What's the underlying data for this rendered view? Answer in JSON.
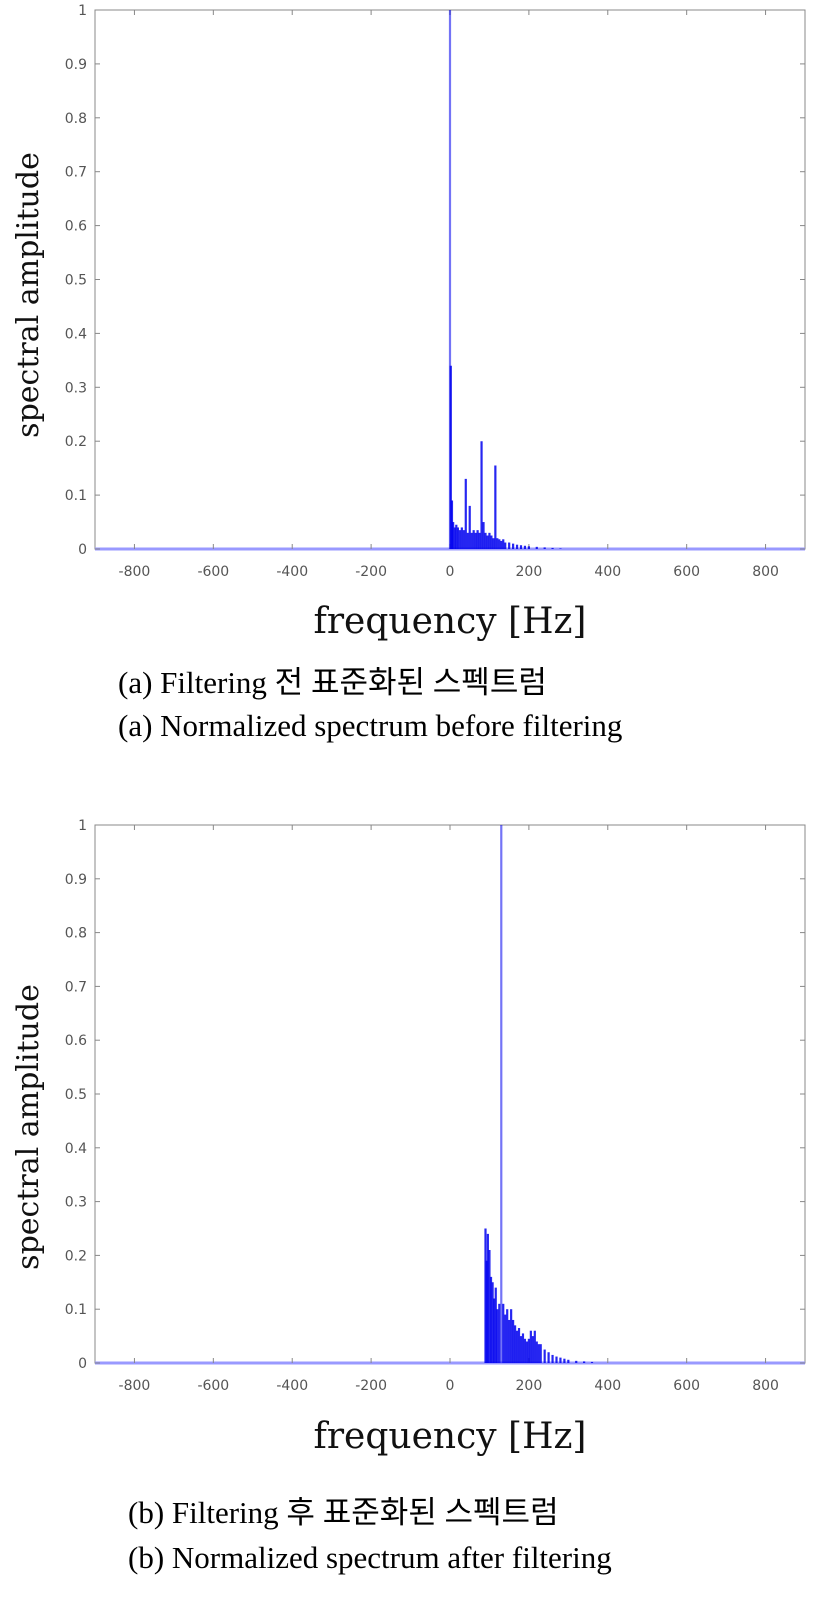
{
  "colors": {
    "spectrum": "#0000ee",
    "axis": "#888888",
    "tick_text": "#555555"
  },
  "chart_data": [
    {
      "type": "bar",
      "title": "",
      "xlabel": "frequency [Hz]",
      "ylabel": "spectral amplitude",
      "xlim": [
        -900,
        900
      ],
      "ylim": [
        0,
        1
      ],
      "xticks": [
        -800,
        -600,
        -400,
        -200,
        0,
        200,
        400,
        600,
        800
      ],
      "yticks": [
        0,
        0.1,
        0.2,
        0.3,
        0.4,
        0.5,
        0.6,
        0.7,
        0.8,
        0.9,
        1
      ],
      "ytick_labels": [
        "0",
        "0.1",
        "0.2",
        "0.3",
        "0.4",
        "0.5",
        "0.6",
        "0.7",
        "0.8",
        "0.9",
        "1"
      ],
      "grid": false,
      "series": [
        {
          "x": [
            0,
            2,
            5,
            8,
            12,
            16,
            20,
            25,
            30,
            35,
            40,
            45,
            50,
            55,
            60,
            65,
            70,
            75,
            80,
            85,
            90,
            95,
            100,
            105,
            110,
            115,
            120,
            125,
            130,
            135,
            140,
            150,
            160,
            170,
            180,
            190,
            200,
            220,
            240,
            260,
            280
          ],
          "y": [
            1.0,
            0.34,
            0.09,
            0.05,
            0.04,
            0.045,
            0.04,
            0.035,
            0.04,
            0.035,
            0.13,
            0.03,
            0.08,
            0.03,
            0.035,
            0.03,
            0.035,
            0.03,
            0.2,
            0.05,
            0.03,
            0.025,
            0.03,
            0.025,
            0.02,
            0.155,
            0.02,
            0.018,
            0.015,
            0.018,
            0.012,
            0.012,
            0.01,
            0.008,
            0.007,
            0.006,
            0.005,
            0.004,
            0.003,
            0.002,
            0.001
          ]
        }
      ],
      "caption_ko": "(a) Filtering 전 표준화된 스펙트럼",
      "caption_en": "(a) Normalized spectrum before filtering"
    },
    {
      "type": "bar",
      "title": "",
      "xlabel": "frequency [Hz]",
      "ylabel": "spectral amplitude",
      "xlim": [
        -900,
        900
      ],
      "ylim": [
        0,
        1
      ],
      "xticks": [
        -800,
        -600,
        -400,
        -200,
        0,
        200,
        400,
        600,
        800
      ],
      "yticks": [
        0,
        0.1,
        0.2,
        0.3,
        0.4,
        0.5,
        0.6,
        0.7,
        0.8,
        0.9,
        1
      ],
      "ytick_labels": [
        "0",
        "0.1",
        "0.2",
        "0.3",
        "0.4",
        "0.5",
        "0.6",
        "0.7",
        "0.8",
        "0.9",
        "1"
      ],
      "grid": false,
      "series": [
        {
          "x": [
            90,
            93,
            96,
            100,
            104,
            108,
            112,
            116,
            120,
            125,
            130,
            135,
            140,
            145,
            150,
            155,
            160,
            165,
            170,
            175,
            180,
            185,
            190,
            195,
            200,
            205,
            210,
            215,
            220,
            225,
            230,
            240,
            250,
            260,
            270,
            280,
            290,
            300,
            320,
            340,
            360
          ],
          "y": [
            0.25,
            0.19,
            0.24,
            0.21,
            0.16,
            0.15,
            0.12,
            0.14,
            0.1,
            0.11,
            1.0,
            0.11,
            0.09,
            0.1,
            0.08,
            0.1,
            0.08,
            0.07,
            0.06,
            0.065,
            0.05,
            0.055,
            0.045,
            0.04,
            0.045,
            0.06,
            0.05,
            0.06,
            0.04,
            0.035,
            0.035,
            0.025,
            0.02,
            0.015,
            0.012,
            0.01,
            0.008,
            0.006,
            0.004,
            0.003,
            0.002
          ]
        }
      ],
      "caption_ko": "(b) Filtering 후 표준화된 스펙트럼",
      "caption_en": "(b) Normalized spectrum after filtering"
    }
  ]
}
